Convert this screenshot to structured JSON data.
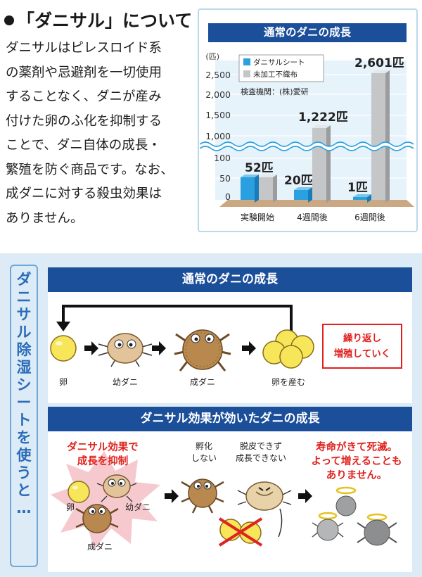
{
  "intro": {
    "heading": "「ダニサル」について",
    "lines": [
      "ダニサルはピレスロイド系",
      "の薬剤や忌避剤を一切使用",
      "することなく、ダニが産み",
      "付けた卵のふ化を抑制する",
      "ことで、ダニ自体の成長・",
      "繁殖を防ぐ商品です。なお、",
      "成ダニに対する殺虫効果は",
      "ありません。"
    ]
  },
  "chart_data": {
    "type": "bar",
    "title": "通常のダニの成長",
    "ylabel": "(匹)",
    "categories": [
      "実験開始",
      "4週間後",
      "6週間後"
    ],
    "series": [
      {
        "name": "ダニサルシート",
        "values": [
          52,
          20,
          1
        ],
        "color": "#2aa0e0"
      },
      {
        "name": "未加工不織布",
        "values": [
          52,
          1222,
          2601
        ],
        "color": "#c4c6c8"
      }
    ],
    "data_labels": [
      "52匹",
      "20匹",
      "1,222匹",
      "1匹",
      "2,601匹"
    ],
    "y_ticks_lower": [
      "0",
      "50",
      "100"
    ],
    "y_ticks_upper": [
      "1,000",
      "1,500",
      "2,000",
      "2,500"
    ],
    "broken_axis": true,
    "legend_position": "top-left",
    "note": "検査機関：(株)愛研"
  },
  "side_label": [
    "ダ",
    "ニ",
    "サ",
    "ル",
    "除",
    "湿",
    "シ",
    "ー",
    "ト",
    "を",
    "使",
    "う",
    "と",
    "…"
  ],
  "normal": {
    "banner": "通常のダニの成長",
    "stages": [
      "卵",
      "幼ダニ",
      "成ダニ",
      "卵を産む"
    ],
    "repeat": [
      "繰り返し",
      "増殖していく"
    ]
  },
  "effect": {
    "banner": "ダニサル効果が効いたダニの成長",
    "burst": [
      "ダニサル効果で",
      "成長を抑制"
    ],
    "labels": {
      "egg": "卵",
      "larva": "幼ダニ",
      "adult": "成ダニ"
    },
    "no_hatch": [
      "孵化",
      "しない"
    ],
    "no_molt": [
      "脱皮できず",
      "成長できない"
    ],
    "result": [
      "寿命がきて死滅。",
      "よって増えることも",
      "ありません。"
    ]
  },
  "colors": {
    "navy": "#1b4f9a",
    "cyan": "#2aa0e0",
    "gray_bar": "#c4c6c8",
    "red": "#e0231e",
    "egg": "#f7e55a",
    "bg": "#dcebf6"
  }
}
